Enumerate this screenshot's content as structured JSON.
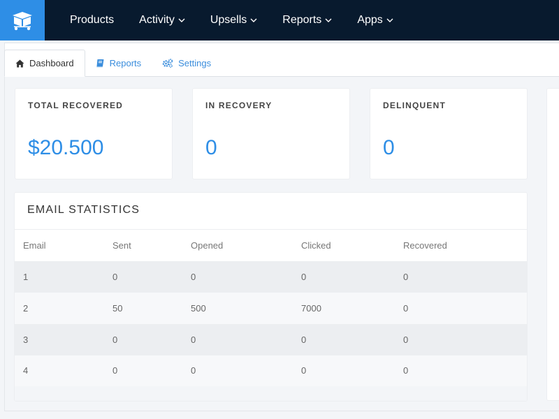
{
  "nav": {
    "logo_icon": "box-cart-icon",
    "items": [
      {
        "label": "Products",
        "has_dropdown": false
      },
      {
        "label": "Activity",
        "has_dropdown": true
      },
      {
        "label": "Upsells",
        "has_dropdown": true
      },
      {
        "label": "Reports",
        "has_dropdown": true
      },
      {
        "label": "Apps",
        "has_dropdown": true
      }
    ]
  },
  "tabs": [
    {
      "label": "Dashboard",
      "icon": "home-icon",
      "active": true
    },
    {
      "label": "Reports",
      "icon": "book-icon",
      "active": false
    },
    {
      "label": "Settings",
      "icon": "gears-icon",
      "active": false
    }
  ],
  "cards": [
    {
      "label": "TOTAL RECOVERED",
      "value": "$20.500"
    },
    {
      "label": "IN RECOVERY",
      "value": "0"
    },
    {
      "label": "DELINQUENT",
      "value": "0"
    }
  ],
  "email_stats": {
    "title": "EMAIL STATISTICS",
    "columns": [
      "Email",
      "Sent",
      "Opened",
      "Clicked",
      "Recovered"
    ],
    "rows": [
      [
        "1",
        "0",
        "0",
        "0",
        "0"
      ],
      [
        "2",
        "50",
        "500",
        "7000",
        "0"
      ],
      [
        "3",
        "0",
        "0",
        "0",
        "0"
      ],
      [
        "4",
        "0",
        "0",
        "0",
        "0"
      ]
    ]
  },
  "colors": {
    "nav_bg": "#081a2e",
    "accent": "#2e8ee6",
    "link": "#3a8ddc"
  }
}
